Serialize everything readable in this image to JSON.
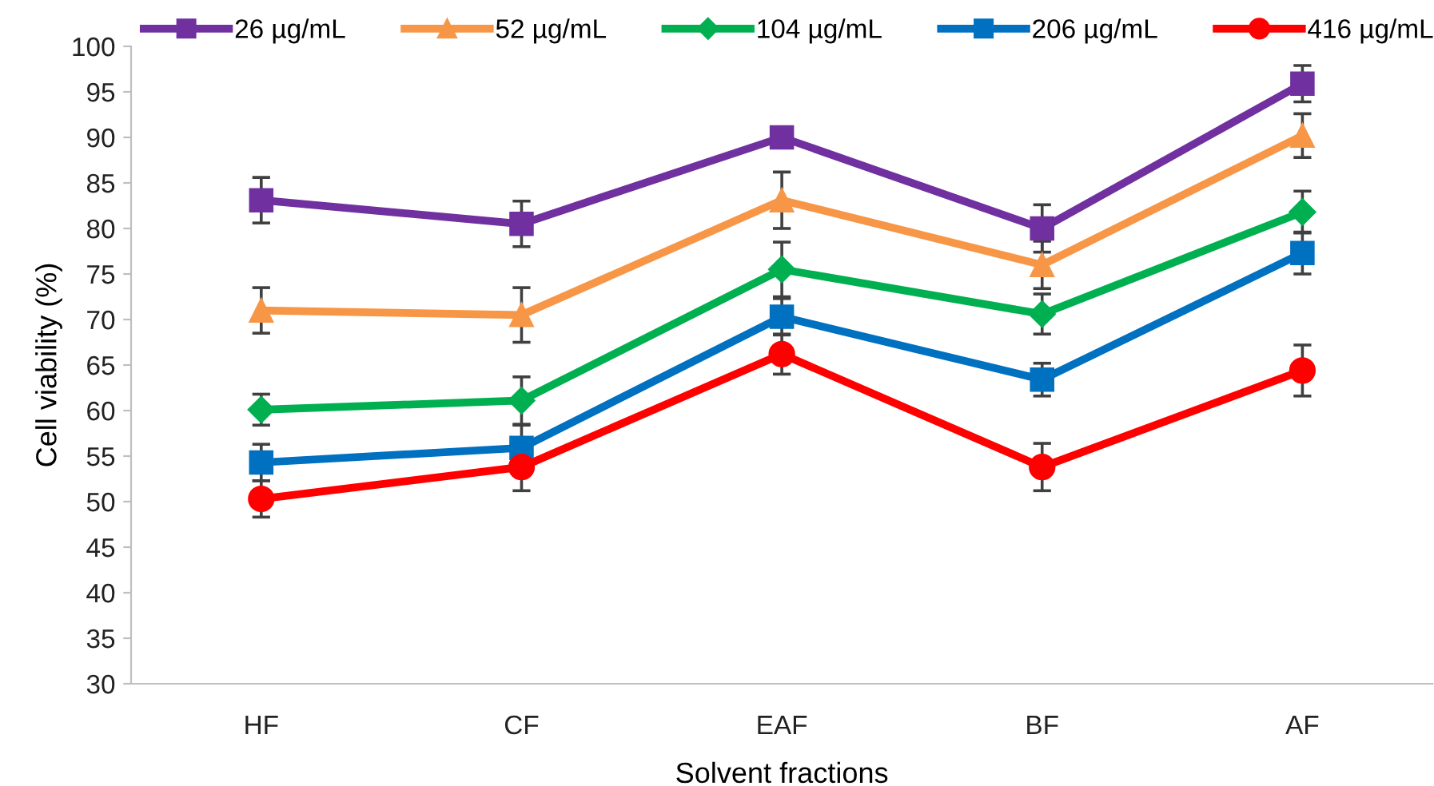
{
  "chart_data": {
    "type": "line",
    "xlabel": "Solvent fractions",
    "ylabel": "Cell viability (%)",
    "categories": [
      "HF",
      "CF",
      "EAF",
      "BF",
      "AF"
    ],
    "ylim": [
      30,
      100
    ],
    "yticks": [
      30,
      35,
      40,
      45,
      50,
      55,
      60,
      65,
      70,
      75,
      80,
      85,
      90,
      95,
      100
    ],
    "grid": false,
    "legend": "top",
    "line_style": "solid",
    "series": [
      {
        "name": "26 µg/mL",
        "color": "#7030a0",
        "marker": "square",
        "values": [
          83.1,
          80.5,
          90.0,
          80.0,
          95.9
        ],
        "errors": [
          2.5,
          2.5,
          null,
          2.6,
          2.0
        ]
      },
      {
        "name": "52 µg/mL",
        "color": "#f79646",
        "marker": "triangle",
        "values": [
          71.0,
          70.5,
          83.1,
          76.0,
          90.2
        ],
        "errors": [
          2.5,
          3.0,
          3.1,
          2.6,
          2.4
        ]
      },
      {
        "name": "104 µg/mL",
        "color": "#00b050",
        "marker": "diamond",
        "values": [
          60.1,
          61.1,
          75.5,
          70.6,
          81.8
        ],
        "errors": [
          1.7,
          2.6,
          3.0,
          2.2,
          2.3
        ]
      },
      {
        "name": "206 µg/mL",
        "color": "#0070c0",
        "marker": "square",
        "values": [
          54.3,
          55.9,
          70.3,
          63.4,
          77.3
        ],
        "errors": [
          2.0,
          2.5,
          2.0,
          1.8,
          2.3
        ]
      },
      {
        "name": "416 µg/mL",
        "color": "#ff0000",
        "marker": "circle",
        "values": [
          50.3,
          53.8,
          66.2,
          53.8,
          64.4
        ],
        "errors": [
          2.0,
          2.6,
          2.2,
          2.6,
          2.8
        ]
      }
    ]
  }
}
